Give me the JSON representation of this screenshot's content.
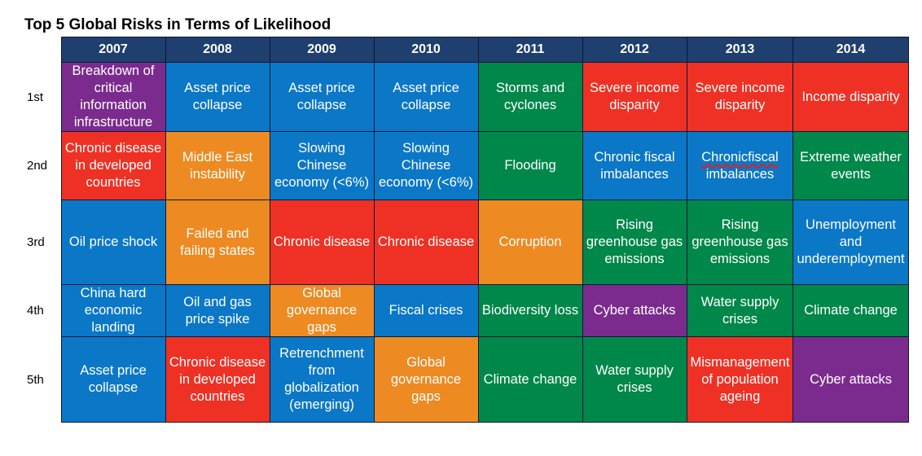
{
  "title": "Top 5 Global Risks in Terms of Likelihood",
  "colors": {
    "header": "#1f3f6e",
    "blue": "#0b77c7",
    "red": "#ee3124",
    "green": "#00874a",
    "orange": "#ed8a22",
    "purple": "#7b2b8e",
    "spellcheck_underline": "#e02020"
  },
  "chart_data": {
    "type": "table",
    "title": "Top 5 Global Risks in Terms of Likelihood",
    "columns": [
      "2007",
      "2008",
      "2009",
      "2010",
      "2011",
      "2012",
      "2013",
      "2014"
    ],
    "rows": [
      {
        "rank": "1st",
        "cells": [
          {
            "text": "Breakdown of critical information infrastructure",
            "color": "purple"
          },
          {
            "text": "Asset price collapse",
            "color": "blue"
          },
          {
            "text": "Asset price collapse",
            "color": "blue"
          },
          {
            "text": "Asset price collapse",
            "color": "blue"
          },
          {
            "text": "Storms and cyclones",
            "color": "green"
          },
          {
            "text": "Severe income disparity",
            "color": "red"
          },
          {
            "text": "Severe income disparity",
            "color": "red"
          },
          {
            "text": "Income disparity",
            "color": "red"
          }
        ]
      },
      {
        "rank": "2nd",
        "cells": [
          {
            "text": "Chronic disease in developed countries",
            "color": "red"
          },
          {
            "text": "Middle East instability",
            "color": "orange"
          },
          {
            "text": "Slowing Chinese economy (<6%)",
            "color": "blue"
          },
          {
            "text": "Slowing Chinese economy (<6%)",
            "color": "blue"
          },
          {
            "text": "Flooding",
            "color": "green"
          },
          {
            "text": "Chronic fiscal imbalances",
            "color": "blue"
          },
          {
            "text": "Chronicfiscal imbalances",
            "color": "blue",
            "misspelled": "Chronicfiscal"
          },
          {
            "text": "Extreme weather events",
            "color": "green"
          }
        ]
      },
      {
        "rank": "3rd",
        "cells": [
          {
            "text": "Oil price shock",
            "color": "blue"
          },
          {
            "text": "Failed and failing states",
            "color": "orange"
          },
          {
            "text": "Chronic disease",
            "color": "red"
          },
          {
            "text": "Chronic disease",
            "color": "red"
          },
          {
            "text": "Corruption",
            "color": "orange"
          },
          {
            "text": "Rising greenhouse gas emissions",
            "color": "green"
          },
          {
            "text": "Rising greenhouse gas emissions",
            "color": "green"
          },
          {
            "text": "Unemployment and underemployment",
            "color": "blue"
          }
        ]
      },
      {
        "rank": "4th",
        "cells": [
          {
            "text": "China hard economic landing",
            "color": "blue"
          },
          {
            "text": "Oil and gas price spike",
            "color": "blue"
          },
          {
            "text": "Global governance gaps",
            "color": "orange"
          },
          {
            "text": "Fiscal crises",
            "color": "blue"
          },
          {
            "text": "Biodiversity loss",
            "color": "green"
          },
          {
            "text": "Cyber attacks",
            "color": "purple"
          },
          {
            "text": "Water supply crises",
            "color": "green"
          },
          {
            "text": "Climate change",
            "color": "green"
          }
        ]
      },
      {
        "rank": "5th",
        "cells": [
          {
            "text": "Asset price collapse",
            "color": "blue"
          },
          {
            "text": "Chronic disease in developed countries",
            "color": "red"
          },
          {
            "text": "Retrenchment from globalization (emerging)",
            "color": "blue"
          },
          {
            "text": "Global governance gaps",
            "color": "orange"
          },
          {
            "text": "Climate change",
            "color": "green"
          },
          {
            "text": "Water supply crises",
            "color": "green"
          },
          {
            "text": "Mismanagement of population ageing",
            "color": "red"
          },
          {
            "text": "Cyber attacks",
            "color": "purple"
          }
        ]
      }
    ]
  }
}
